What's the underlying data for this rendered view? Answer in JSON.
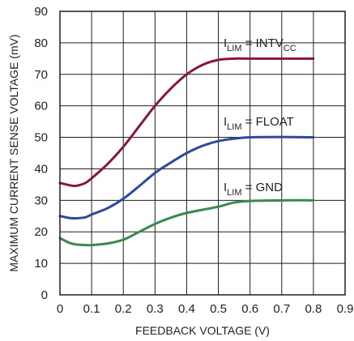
{
  "chart_data": {
    "type": "line",
    "title": "",
    "xlabel": "FEEDBACK VOLTAGE (V)",
    "ylabel": "MAXIMUM CURRENT SENSE VOLTAGE (mV)",
    "xlim": [
      0,
      0.9
    ],
    "ylim": [
      0,
      90
    ],
    "xticks": [
      "0",
      "0.1",
      "0.2",
      "0.3",
      "0.4",
      "0.5",
      "0.6",
      "0.7",
      "0.8",
      "0.9"
    ],
    "yticks": [
      "0",
      "10",
      "20",
      "30",
      "40",
      "50",
      "60",
      "70",
      "80",
      "90"
    ],
    "grid": true,
    "series": [
      {
        "name": "ILIM = INTVCC",
        "label_main": "I",
        "label_sub": "LIM",
        "label_rest": " = INTV",
        "label_sub2": "CC",
        "color": "#8b1538",
        "x": [
          0,
          0.03,
          0.05,
          0.08,
          0.1,
          0.15,
          0.2,
          0.25,
          0.3,
          0.35,
          0.4,
          0.45,
          0.5,
          0.55,
          0.6,
          0.7,
          0.8
        ],
        "y": [
          35.5,
          34.8,
          34.6,
          35.5,
          37,
          41.5,
          47,
          53.5,
          60,
          65.5,
          70,
          73,
          74.6,
          75,
          75,
          75,
          75
        ]
      },
      {
        "name": "ILIM = FLOAT",
        "label_main": "I",
        "label_sub": "LIM",
        "label_rest": " = FLOAT",
        "label_sub2": "",
        "color": "#2e4a9c",
        "x": [
          0,
          0.03,
          0.05,
          0.08,
          0.1,
          0.15,
          0.2,
          0.25,
          0.3,
          0.35,
          0.4,
          0.45,
          0.5,
          0.55,
          0.6,
          0.7,
          0.8
        ],
        "y": [
          25,
          24.4,
          24.3,
          24.6,
          25.5,
          27.5,
          30.5,
          34.5,
          38.7,
          42,
          45,
          47.3,
          48.8,
          49.6,
          50,
          50.1,
          50
        ]
      },
      {
        "name": "ILIM = GND",
        "label_main": "I",
        "label_sub": "LIM",
        "label_rest": " = GND",
        "label_sub2": "",
        "color": "#3a8a4e",
        "x": [
          0,
          0.03,
          0.05,
          0.08,
          0.1,
          0.15,
          0.2,
          0.25,
          0.3,
          0.35,
          0.4,
          0.45,
          0.5,
          0.55,
          0.6,
          0.7,
          0.8
        ],
        "y": [
          18,
          16.5,
          16,
          15.8,
          15.8,
          16.3,
          17.5,
          20,
          22.5,
          24.5,
          26,
          27,
          28,
          29.3,
          29.8,
          30,
          30
        ]
      }
    ]
  }
}
